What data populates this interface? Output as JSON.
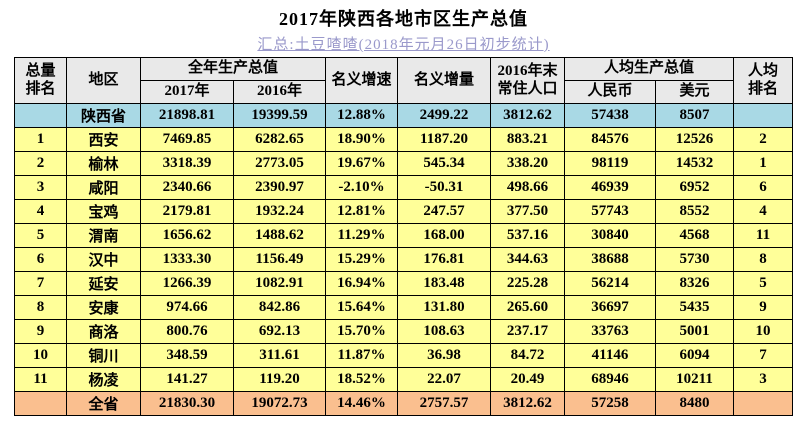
{
  "title": "2017年陕西各地市区生产总值",
  "subtitle": "汇总:土豆喳喳(2018年元月26日初步统计)",
  "colors": {
    "subtitle_text": "#9a99cb",
    "header_bg": "#e9e9e9",
    "province_row_bg": "#a9d9e5",
    "city_row_bg": "#ffff99",
    "total_row_bg": "#fabf8f",
    "border": "#000000"
  },
  "table": {
    "headers": {
      "total_rank": "总量\n排名",
      "region": "地区",
      "annual_gdp": "全年生产总值",
      "y2017": "2017年",
      "y2016": "2016年",
      "nominal_growth": "名义增速",
      "nominal_delta": "名义增量",
      "population": "2016年末\n常住人口",
      "per_capita_gdp": "人均生产总值",
      "rmb": "人民币",
      "usd": "美元",
      "per_capita_rank": "人均\n排名"
    },
    "rows": [
      {
        "type": "province",
        "rank": "",
        "region": "陕西省",
        "gdp2017": "21898.81",
        "gdp2016": "19399.59",
        "growth": "12.88%",
        "delta": "2499.22",
        "population": "3812.62",
        "rmb": "57438",
        "usd": "8507",
        "pc_rank": ""
      },
      {
        "type": "city",
        "rank": "1",
        "region": "西安",
        "gdp2017": "7469.85",
        "gdp2016": "6282.65",
        "growth": "18.90%",
        "delta": "1187.20",
        "population": "883.21",
        "rmb": "84576",
        "usd": "12526",
        "pc_rank": "2"
      },
      {
        "type": "city",
        "rank": "2",
        "region": "榆林",
        "gdp2017": "3318.39",
        "gdp2016": "2773.05",
        "growth": "19.67%",
        "delta": "545.34",
        "population": "338.20",
        "rmb": "98119",
        "usd": "14532",
        "pc_rank": "1"
      },
      {
        "type": "city",
        "rank": "3",
        "region": "咸阳",
        "gdp2017": "2340.66",
        "gdp2016": "2390.97",
        "growth": "-2.10%",
        "delta": "-50.31",
        "population": "498.66",
        "rmb": "46939",
        "usd": "6952",
        "pc_rank": "6"
      },
      {
        "type": "city",
        "rank": "4",
        "region": "宝鸡",
        "gdp2017": "2179.81",
        "gdp2016": "1932.24",
        "growth": "12.81%",
        "delta": "247.57",
        "population": "377.50",
        "rmb": "57743",
        "usd": "8552",
        "pc_rank": "4"
      },
      {
        "type": "city",
        "rank": "5",
        "region": "渭南",
        "gdp2017": "1656.62",
        "gdp2016": "1488.62",
        "growth": "11.29%",
        "delta": "168.00",
        "population": "537.16",
        "rmb": "30840",
        "usd": "4568",
        "pc_rank": "11"
      },
      {
        "type": "city",
        "rank": "6",
        "region": "汉中",
        "gdp2017": "1333.30",
        "gdp2016": "1156.49",
        "growth": "15.29%",
        "delta": "176.81",
        "population": "344.63",
        "rmb": "38688",
        "usd": "5730",
        "pc_rank": "8"
      },
      {
        "type": "city",
        "rank": "7",
        "region": "延安",
        "gdp2017": "1266.39",
        "gdp2016": "1082.91",
        "growth": "16.94%",
        "delta": "183.48",
        "population": "225.28",
        "rmb": "56214",
        "usd": "8326",
        "pc_rank": "5"
      },
      {
        "type": "city",
        "rank": "8",
        "region": "安康",
        "gdp2017": "974.66",
        "gdp2016": "842.86",
        "growth": "15.64%",
        "delta": "131.80",
        "population": "265.60",
        "rmb": "36697",
        "usd": "5435",
        "pc_rank": "9"
      },
      {
        "type": "city",
        "rank": "9",
        "region": "商洛",
        "gdp2017": "800.76",
        "gdp2016": "692.13",
        "growth": "15.70%",
        "delta": "108.63",
        "population": "237.17",
        "rmb": "33763",
        "usd": "5001",
        "pc_rank": "10"
      },
      {
        "type": "city",
        "rank": "10",
        "region": "铜川",
        "gdp2017": "348.59",
        "gdp2016": "311.61",
        "growth": "11.87%",
        "delta": "36.98",
        "population": "84.72",
        "rmb": "41146",
        "usd": "6094",
        "pc_rank": "7"
      },
      {
        "type": "city",
        "rank": "11",
        "region": "杨凌",
        "gdp2017": "141.27",
        "gdp2016": "119.20",
        "growth": "18.52%",
        "delta": "22.07",
        "population": "20.49",
        "rmb": "68946",
        "usd": "10211",
        "pc_rank": "3"
      },
      {
        "type": "total",
        "rank": "",
        "region": "全省",
        "gdp2017": "21830.30",
        "gdp2016": "19072.73",
        "growth": "14.46%",
        "delta": "2757.57",
        "population": "3812.62",
        "rmb": "57258",
        "usd": "8480",
        "pc_rank": ""
      }
    ]
  }
}
